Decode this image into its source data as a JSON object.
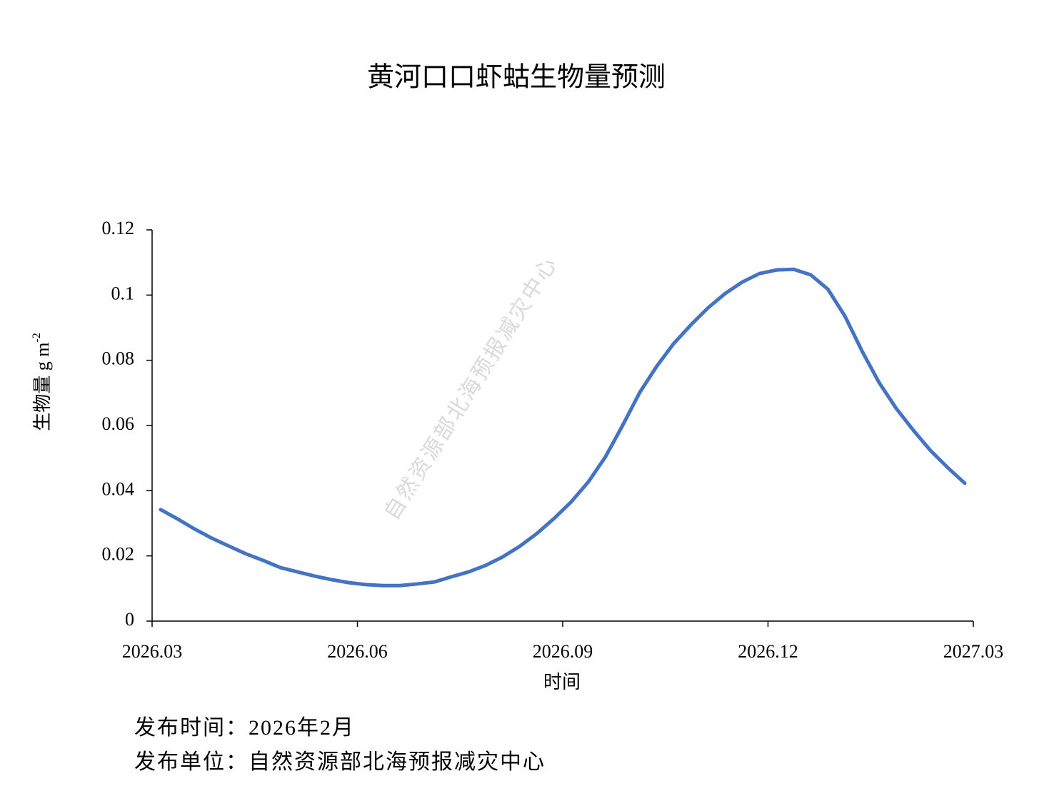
{
  "chart_data": {
    "type": "line",
    "title": "黄河口口虾蛄生物量预测",
    "x_label": "时间",
    "y_label": "生物量 g m",
    "y_label_sup": "-2",
    "watermark": "自然资源部北海预报减灾中心",
    "footer": [
      "发布时间：2026年2月",
      "发布单位：自然资源部北海预报减灾中心"
    ],
    "xlim": [
      0,
      12
    ],
    "xticks": [
      {
        "value": 0,
        "label": "2026.03"
      },
      {
        "value": 3,
        "label": "2026.06"
      },
      {
        "value": 6,
        "label": "2026.09"
      },
      {
        "value": 9,
        "label": "2026.12"
      },
      {
        "value": 12,
        "label": "2027.03"
      }
    ],
    "ylim": [
      0,
      0.12
    ],
    "yticks": [
      0,
      0.02,
      0.04,
      0.06,
      0.08,
      0.1,
      0.12
    ],
    "grid": false,
    "x": [
      0.125,
      0.375,
      0.625,
      0.875,
      1.125,
      1.375,
      1.625,
      1.875,
      2.125,
      2.375,
      2.625,
      2.875,
      3.125,
      3.375,
      3.625,
      3.875,
      4.125,
      4.375,
      4.625,
      4.875,
      5.125,
      5.375,
      5.625,
      5.875,
      6.125,
      6.375,
      6.625,
      6.875,
      7.125,
      7.375,
      7.625,
      7.875,
      8.125,
      8.375,
      8.625,
      8.875,
      9.125,
      9.375,
      9.625,
      9.875,
      10.125,
      10.375,
      10.625,
      10.875,
      11.125,
      11.375,
      11.625,
      11.875
    ],
    "series": [
      {
        "name": "生物量",
        "color": "#4472c4",
        "values": [
          0.0342,
          0.0313,
          0.0282,
          0.0254,
          0.023,
          0.0206,
          0.0186,
          0.0164,
          0.0151,
          0.0138,
          0.0127,
          0.0118,
          0.0112,
          0.0109,
          0.0109,
          0.0114,
          0.012,
          0.0136,
          0.0151,
          0.0171,
          0.0197,
          0.023,
          0.0269,
          0.0315,
          0.0366,
          0.0427,
          0.0504,
          0.06,
          0.0701,
          0.0782,
          0.0852,
          0.0909,
          0.0961,
          0.1005,
          0.104,
          0.1066,
          0.1077,
          0.1079,
          0.1062,
          0.1018,
          0.0935,
          0.0828,
          0.0731,
          0.0652,
          0.0585,
          0.0523,
          0.0471,
          0.0423
        ]
      }
    ]
  }
}
